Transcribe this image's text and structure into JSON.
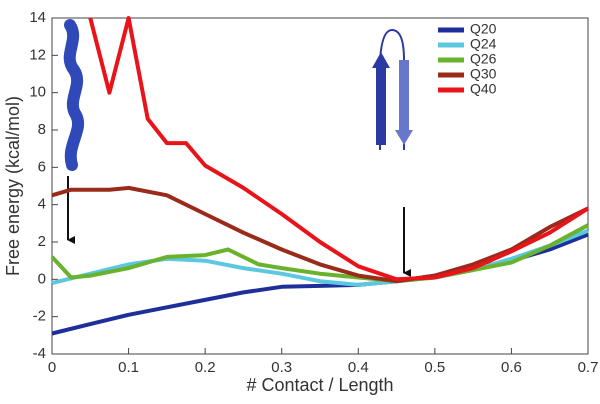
{
  "chart_data": {
    "type": "line",
    "xlabel": "# Contact / Length",
    "ylabel": "Free energy (kcal/mol)",
    "xlim": [
      0,
      0.7
    ],
    "ylim": [
      -4,
      14
    ],
    "xticks": [
      0,
      0.1,
      0.2,
      0.3,
      0.4,
      0.5,
      0.6,
      0.7
    ],
    "yticks": [
      -4,
      -2,
      0,
      2,
      4,
      6,
      8,
      10,
      12,
      14
    ],
    "legend": "upper right",
    "series": [
      {
        "name": "Q20",
        "color": "#1f2f9a",
        "x": [
          0,
          0.05,
          0.1,
          0.15,
          0.2,
          0.25,
          0.3,
          0.35,
          0.4,
          0.45,
          0.5,
          0.55,
          0.6,
          0.65,
          0.7
        ],
        "values": [
          -2.9,
          -2.4,
          -1.9,
          -1.5,
          -1.1,
          -0.7,
          -0.4,
          -0.35,
          -0.3,
          -0.1,
          0.2,
          0.6,
          1.0,
          1.6,
          2.4
        ]
      },
      {
        "name": "Q24",
        "color": "#5bc8e0",
        "x": [
          0,
          0.05,
          0.1,
          0.15,
          0.2,
          0.25,
          0.3,
          0.35,
          0.4,
          0.45,
          0.5,
          0.55,
          0.6,
          0.65,
          0.7
        ],
        "values": [
          -0.2,
          0.3,
          0.8,
          1.1,
          1.0,
          0.6,
          0.3,
          -0.1,
          -0.3,
          -0.1,
          0.1,
          0.5,
          1.1,
          1.8,
          2.6
        ]
      },
      {
        "name": "Q26",
        "color": "#6ab22e",
        "x": [
          0,
          0.025,
          0.05,
          0.1,
          0.15,
          0.2,
          0.23,
          0.27,
          0.3,
          0.35,
          0.4,
          0.45,
          0.5,
          0.55,
          0.6,
          0.65,
          0.7
        ],
        "values": [
          1.2,
          0.1,
          0.2,
          0.6,
          1.2,
          1.3,
          1.6,
          0.8,
          0.6,
          0.3,
          0.1,
          -0.1,
          0.1,
          0.5,
          0.9,
          1.8,
          2.9
        ]
      },
      {
        "name": "Q30",
        "color": "#9a2a1a",
        "x": [
          0,
          0.025,
          0.075,
          0.1,
          0.15,
          0.2,
          0.25,
          0.3,
          0.35,
          0.4,
          0.45,
          0.5,
          0.55,
          0.6,
          0.65,
          0.7
        ],
        "values": [
          4.5,
          4.8,
          4.8,
          4.9,
          4.5,
          3.5,
          2.5,
          1.6,
          0.8,
          0.2,
          -0.1,
          0.2,
          0.8,
          1.6,
          2.8,
          3.8
        ]
      },
      {
        "name": "Q40",
        "color": "#e8141a",
        "x": [
          0.05,
          0.075,
          0.1,
          0.125,
          0.15,
          0.175,
          0.2,
          0.25,
          0.3,
          0.35,
          0.4,
          0.45,
          0.5,
          0.55,
          0.6,
          0.65,
          0.7
        ],
        "values": [
          14,
          10,
          14,
          8.6,
          7.3,
          7.3,
          6.1,
          4.9,
          3.5,
          2.0,
          0.7,
          0.0,
          0.1,
          0.6,
          1.5,
          2.5,
          3.8
        ]
      }
    ]
  }
}
